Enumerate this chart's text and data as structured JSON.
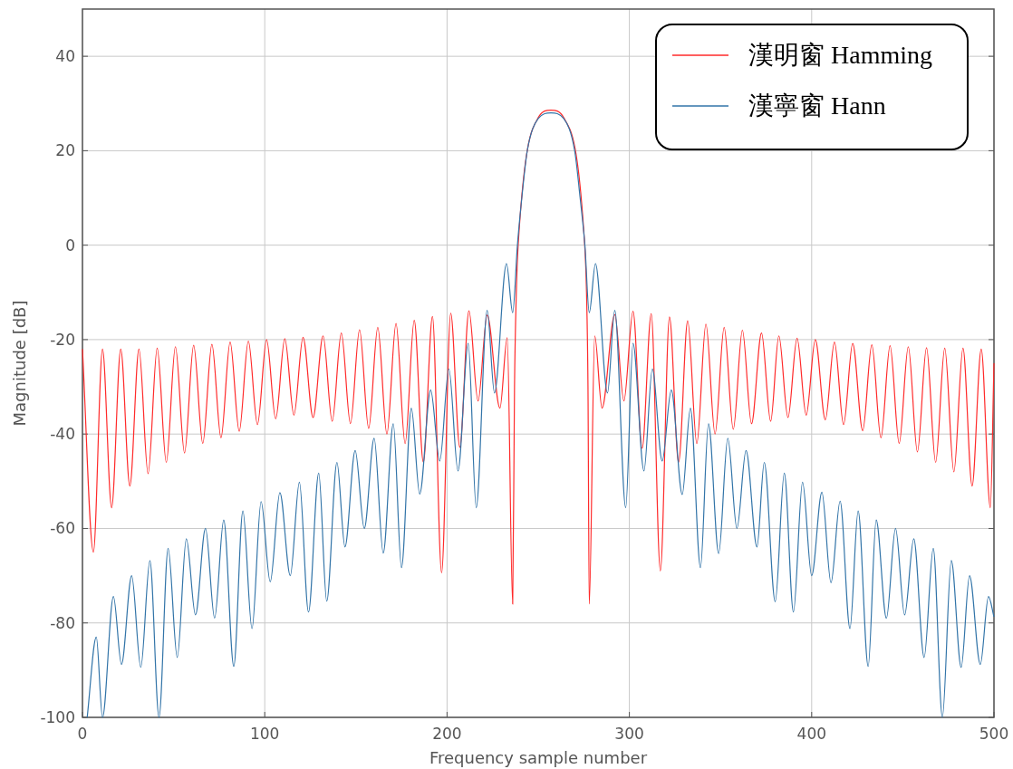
{
  "chart_data": {
    "type": "line",
    "xlabel": "Frequency sample number",
    "ylabel": "Magnitude [dB]",
    "xlim": [
      0,
      500
    ],
    "xticks": [
      0,
      100,
      200,
      300,
      400,
      500
    ],
    "ylim": [
      -100,
      50
    ],
    "yticks": [
      -100,
      -80,
      -60,
      -40,
      -20,
      0,
      20,
      40
    ],
    "grid": true,
    "legend": "top right",
    "series": [
      {
        "name": "漢明窗 Hamming",
        "color": "#ff2a2a",
        "x": [
          0,
          6,
          11,
          16,
          21,
          26,
          31,
          36,
          41,
          46,
          51,
          56,
          61,
          66,
          71,
          76,
          81,
          86,
          91,
          96,
          101,
          106,
          111,
          116,
          121,
          126.5,
          132,
          137,
          142,
          147,
          152,
          157,
          162,
          167,
          172,
          177,
          182,
          187,
          192,
          197,
          202,
          207,
          212,
          217,
          222,
          229,
          233,
          236,
          237,
          238,
          239,
          250,
          257,
          264,
          275.5,
          276.5,
          277.3,
          278,
          281,
          285,
          292,
          297,
          302,
          307,
          312,
          317,
          322,
          327,
          332,
          337,
          342,
          347,
          352,
          357,
          362,
          367,
          372.5,
          377.5,
          382,
          387,
          392,
          397,
          402,
          407.5,
          412.5,
          417.5,
          422.5,
          428,
          433,
          438,
          443,
          448,
          453,
          458,
          463,
          468,
          473,
          478,
          483,
          488,
          493,
          498,
          500
        ],
        "values": [
          -22,
          -65,
          -22,
          -55.6,
          -22,
          -51,
          -22,
          -48.4,
          -21.8,
          -46,
          -21.5,
          -44,
          -21.2,
          -42,
          -21,
          -40.8,
          -20.5,
          -39.4,
          -20.3,
          -38,
          -20,
          -36.8,
          -19.8,
          -36,
          -19.5,
          -36.5,
          -19.2,
          -37.3,
          -18.6,
          -37.8,
          -17.9,
          -38.8,
          -17.4,
          -40,
          -16.6,
          -42,
          -15.9,
          -46,
          -15.1,
          -69.4,
          -14.4,
          -42.8,
          -13.9,
          -33,
          -14.8,
          -34.5,
          -19.6,
          -76,
          -30,
          -10,
          0,
          27,
          28.6,
          27,
          0,
          -10,
          -30,
          -76,
          -19.2,
          -34.5,
          -14.7,
          -33,
          -14,
          -43,
          -14.5,
          -69,
          -15.2,
          -46,
          -16,
          -42,
          -16.7,
          -40,
          -17.4,
          -39,
          -18,
          -37.8,
          -18.6,
          -37.3,
          -19.2,
          -36.5,
          -19.7,
          -36,
          -20,
          -37,
          -20.5,
          -38,
          -20.8,
          -39.3,
          -21.1,
          -40.8,
          -21.3,
          -42,
          -21.5,
          -43.8,
          -21.7,
          -46,
          -21.8,
          -48,
          -21.8,
          -51,
          -22,
          -55.6,
          -25
        ]
      },
      {
        "name": "漢寧窗 Hann",
        "color": "#3274a8",
        "x": [
          2.6,
          7.6,
          11,
          17,
          21.4,
          27,
          32,
          37,
          42,
          47,
          52,
          57,
          62,
          67.5,
          72.5,
          77.5,
          83,
          88,
          93,
          98,
          103,
          108.3,
          114,
          119,
          124,
          129.6,
          134,
          139.6,
          144,
          149.6,
          154.6,
          160,
          165,
          170.5,
          175,
          180.4,
          185,
          191,
          196,
          201,
          206,
          211.6,
          216,
          222,
          226,
          232.6,
          236,
          238.6,
          241,
          244,
          250,
          257,
          264,
          270,
          273,
          275.6,
          278,
          281.4,
          288,
          292,
          298,
          302,
          308,
          312.6,
          318,
          323,
          329,
          333.5,
          339,
          343.4,
          349,
          354,
          359,
          364,
          370,
          374,
          380,
          385,
          390,
          395,
          400,
          405.6,
          410.6,
          415.6,
          421,
          425.5,
          431,
          435.4,
          441,
          446,
          451,
          456,
          461.7,
          466.7,
          471.7,
          476.6,
          482,
          486.6,
          492.5,
          497,
          500
        ],
        "values": [
          -100,
          -83,
          -100,
          -74.4,
          -88.8,
          -70,
          -89.4,
          -66.8,
          -100,
          -64.2,
          -87.3,
          -62.2,
          -78.3,
          -60,
          -79,
          -58.2,
          -89.2,
          -56.3,
          -81.2,
          -54.3,
          -71.3,
          -52.4,
          -70,
          -50.2,
          -77.7,
          -48.3,
          -75.4,
          -46,
          -63.9,
          -43.5,
          -60,
          -40.9,
          -65.2,
          -37.8,
          -68.3,
          -34.5,
          -52.7,
          -30.7,
          -45.7,
          -26.2,
          -47.8,
          -20.8,
          -55.6,
          -13.8,
          -31.3,
          -3.9,
          -14.3,
          0,
          10,
          20,
          26.8,
          28,
          26.8,
          20,
          10,
          0,
          -14.3,
          -3.9,
          -31.3,
          -13.8,
          -55.6,
          -20.8,
          -47.8,
          -26.2,
          -45.7,
          -30.7,
          -52.8,
          -34.5,
          -68.3,
          -37.8,
          -65.3,
          -40.9,
          -60,
          -43.5,
          -63.9,
          -46,
          -75.5,
          -48.3,
          -77.7,
          -50.2,
          -70,
          -52.3,
          -71.5,
          -54.2,
          -81.2,
          -56.3,
          -89.2,
          -58.2,
          -79,
          -60,
          -78.3,
          -62.2,
          -87.3,
          -64.2,
          -100,
          -66.8,
          -89.4,
          -70,
          -88.8,
          -74.4,
          -78.7
        ]
      }
    ]
  }
}
